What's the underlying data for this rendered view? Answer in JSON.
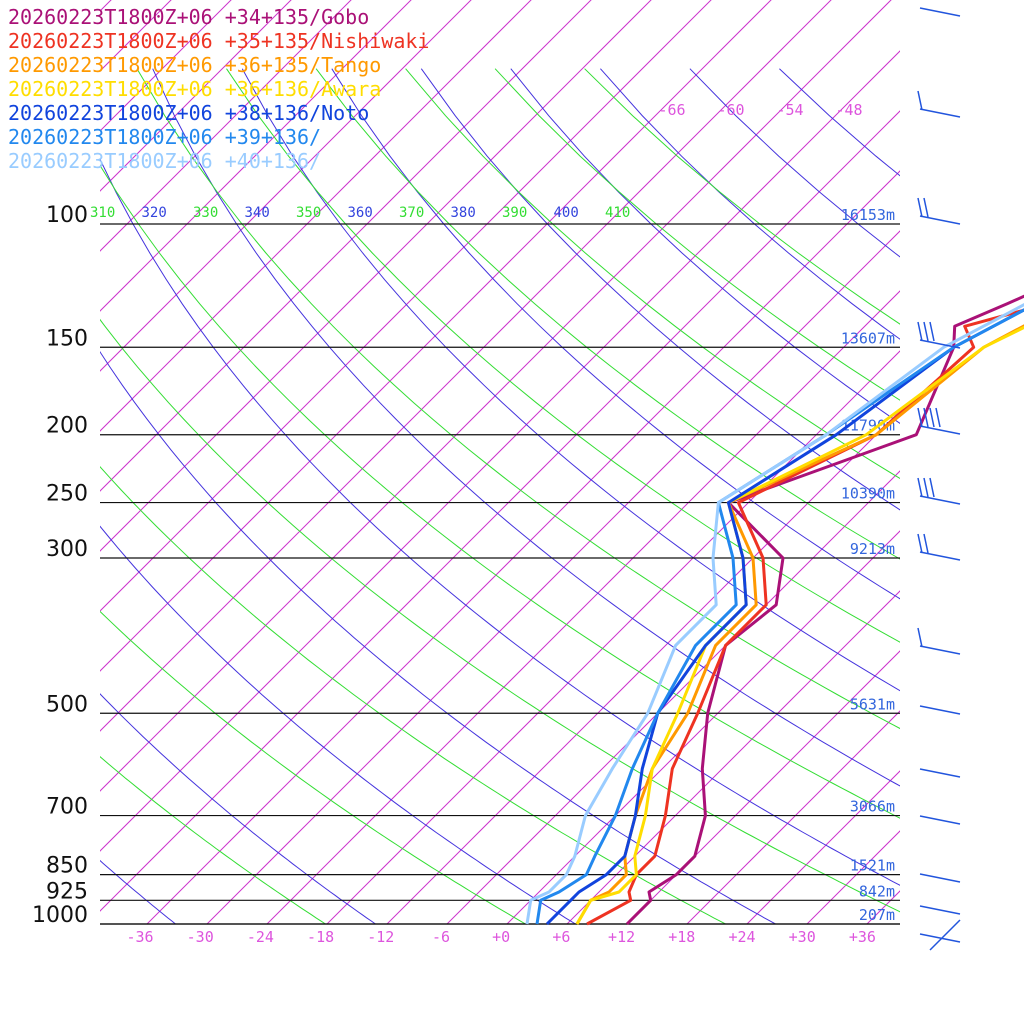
{
  "chart_data": {
    "type": "line",
    "title": "",
    "xlabel": "",
    "ylabel": "",
    "series": [
      {
        "name": "20260223T1800Z+06 +34+135/Gobo",
        "color": "#aa1177",
        "p": [
          1000,
          925,
          900,
          850,
          800,
          700,
          600,
          500,
          400,
          350,
          300,
          250,
          200,
          150,
          140,
          130,
          120,
          100,
          90,
          80,
          70
        ],
        "t": [
          12,
          12,
          11,
          12,
          12,
          9,
          4,
          -1,
          -6,
          -5,
          -9,
          -20,
          -8,
          -13,
          -15,
          -12,
          -9,
          -4,
          3,
          1,
          0
        ]
      },
      {
        "name": "20260223T1800Z+06 +35+135/Nishiwaki",
        "color": "#ee3322",
        "p": [
          1000,
          925,
          900,
          850,
          800,
          700,
          600,
          500,
          400,
          350,
          300,
          250,
          200,
          150,
          140,
          130,
          120,
          100,
          90,
          80,
          70
        ],
        "t": [
          8,
          10,
          9,
          8,
          8,
          5,
          1,
          -2,
          -6,
          -6,
          -11,
          -19,
          -12,
          -11,
          -14,
          -8,
          -6,
          -2,
          2,
          0,
          0
        ]
      },
      {
        "name": "20260223T1800Z+06 +36+135/Tango",
        "color": "#ff9900",
        "p": [
          1000,
          925,
          900,
          850,
          800,
          700,
          600,
          500,
          400,
          350,
          300,
          250,
          200,
          150,
          120,
          100,
          70
        ],
        "t": [
          7,
          6,
          7,
          7,
          5,
          2,
          -1,
          -3,
          -7,
          -7,
          -12,
          -20,
          -12,
          -10,
          -4,
          -2,
          0
        ]
      },
      {
        "name": "20260223T1800Z+06 +36+136/Awara",
        "color": "#ffdd00",
        "p": [
          1000,
          925,
          900,
          850,
          800,
          700,
          600,
          500,
          400,
          350,
          300,
          250,
          200,
          150,
          120,
          100,
          70
        ],
        "t": [
          7,
          6,
          8,
          8,
          6,
          3,
          -1,
          -4,
          -8,
          -8,
          -13,
          -20,
          -13,
          -10,
          -3,
          -2,
          0
        ]
      },
      {
        "name": "20260223T1800Z+06 +38+136/Noto",
        "color": "#1144dd",
        "p": [
          1000,
          925,
          900,
          850,
          800,
          700,
          600,
          500,
          400,
          350,
          300,
          250,
          200,
          150,
          120,
          100,
          70
        ],
        "t": [
          4,
          4,
          4,
          5,
          5,
          2,
          -2,
          -6,
          -8,
          -8,
          -13,
          -20,
          -16,
          -13,
          -7,
          -4,
          0
        ]
      },
      {
        "name": "20260223T1800Z+06 +39+136/",
        "color": "#2288ee",
        "p": [
          1000,
          925,
          900,
          850,
          800,
          700,
          600,
          500,
          400,
          350,
          300,
          250,
          200,
          150,
          120,
          100,
          70
        ],
        "t": [
          3,
          1,
          2,
          3,
          2,
          0,
          -3,
          -6,
          -9,
          -9,
          -14,
          -21,
          -17,
          -13,
          -7,
          -5,
          0
        ]
      },
      {
        "name": "20260223T1800Z+06 +40+136/",
        "color": "#99ccff",
        "p": [
          1000,
          925,
          900,
          850,
          800,
          700,
          600,
          500,
          400,
          350,
          300,
          250,
          200,
          150,
          120,
          100,
          70
        ],
        "t": [
          2,
          0,
          1,
          1,
          0,
          -3,
          -5,
          -7,
          -11,
          -11,
          -16,
          -21,
          -17,
          -14,
          -8,
          -6,
          0
        ]
      }
    ],
    "pressure_ticks": [
      100,
      150,
      200,
      250,
      300,
      500,
      700,
      850,
      925,
      1000
    ],
    "height_labels": [
      {
        "p": 100,
        "text": "16153m"
      },
      {
        "p": 150,
        "text": "13607m"
      },
      {
        "p": 200,
        "text": "11790m"
      },
      {
        "p": 250,
        "text": "10390m"
      },
      {
        "p": 300,
        "text": "9213m"
      },
      {
        "p": 500,
        "text": "5631m"
      },
      {
        "p": 700,
        "text": "3066m"
      },
      {
        "p": 850,
        "text": "1521m"
      },
      {
        "p": 925,
        "text": "842m"
      },
      {
        "p": 1000,
        "text": "207m"
      }
    ],
    "temperature_ticks": [
      "-36",
      "-30",
      "-24",
      "-18",
      "-12",
      "-6",
      "+0",
      "+6",
      "+12",
      "+18",
      "+24",
      "+30",
      "+36"
    ],
    "upper_temperature_ticks": [
      "-66",
      "-60",
      "-54",
      "-48"
    ],
    "theta_labels": [
      "310",
      "320",
      "330",
      "340",
      "350",
      "360",
      "370",
      "380",
      "390",
      "400",
      "410"
    ],
    "wind_barb_levels": [
      {
        "p": 100,
        "label": "N"
      },
      {
        "p": 150,
        "label": "NIIII"
      },
      {
        "p": 200,
        "label": "NIIII"
      },
      {
        "p": 250,
        "label": "NIIIII"
      },
      {
        "p": 300,
        "label": "NIIII"
      },
      {
        "p": 500,
        "label": "NII"
      }
    ],
    "grid": true
  }
}
